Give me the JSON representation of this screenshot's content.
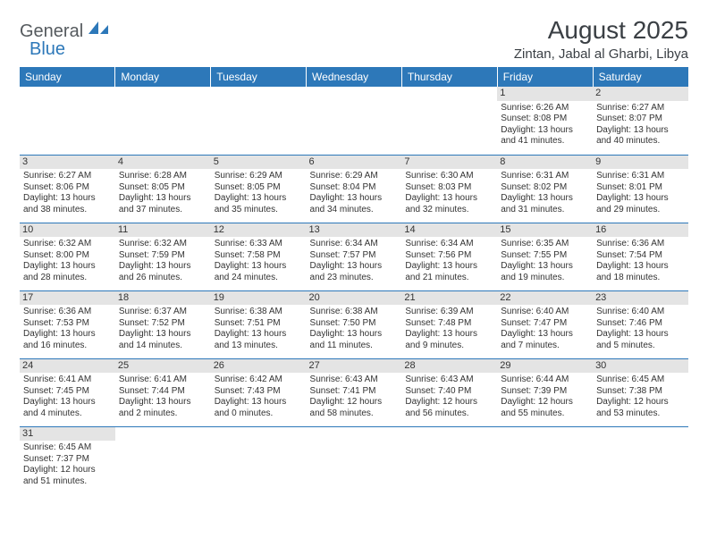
{
  "logo": {
    "part1": "General",
    "part2": "Blue"
  },
  "title": "August 2025",
  "location": "Zintan, Jabal al Gharbi, Libya",
  "colors": {
    "header_bg": "#2d78b9",
    "header_fg": "#ffffff",
    "daynum_bg": "#e4e4e4",
    "row_border": "#2d78b9",
    "logo_gray": "#555a5e",
    "logo_blue": "#2d78b9"
  },
  "weekdays": [
    "Sunday",
    "Monday",
    "Tuesday",
    "Wednesday",
    "Thursday",
    "Friday",
    "Saturday"
  ],
  "grid": [
    [
      null,
      null,
      null,
      null,
      null,
      {
        "n": "1",
        "sr": "6:26 AM",
        "ss": "8:08 PM",
        "dl": "13 hours and 41 minutes."
      },
      {
        "n": "2",
        "sr": "6:27 AM",
        "ss": "8:07 PM",
        "dl": "13 hours and 40 minutes."
      }
    ],
    [
      {
        "n": "3",
        "sr": "6:27 AM",
        "ss": "8:06 PM",
        "dl": "13 hours and 38 minutes."
      },
      {
        "n": "4",
        "sr": "6:28 AM",
        "ss": "8:05 PM",
        "dl": "13 hours and 37 minutes."
      },
      {
        "n": "5",
        "sr": "6:29 AM",
        "ss": "8:05 PM",
        "dl": "13 hours and 35 minutes."
      },
      {
        "n": "6",
        "sr": "6:29 AM",
        "ss": "8:04 PM",
        "dl": "13 hours and 34 minutes."
      },
      {
        "n": "7",
        "sr": "6:30 AM",
        "ss": "8:03 PM",
        "dl": "13 hours and 32 minutes."
      },
      {
        "n": "8",
        "sr": "6:31 AM",
        "ss": "8:02 PM",
        "dl": "13 hours and 31 minutes."
      },
      {
        "n": "9",
        "sr": "6:31 AM",
        "ss": "8:01 PM",
        "dl": "13 hours and 29 minutes."
      }
    ],
    [
      {
        "n": "10",
        "sr": "6:32 AM",
        "ss": "8:00 PM",
        "dl": "13 hours and 28 minutes."
      },
      {
        "n": "11",
        "sr": "6:32 AM",
        "ss": "7:59 PM",
        "dl": "13 hours and 26 minutes."
      },
      {
        "n": "12",
        "sr": "6:33 AM",
        "ss": "7:58 PM",
        "dl": "13 hours and 24 minutes."
      },
      {
        "n": "13",
        "sr": "6:34 AM",
        "ss": "7:57 PM",
        "dl": "13 hours and 23 minutes."
      },
      {
        "n": "14",
        "sr": "6:34 AM",
        "ss": "7:56 PM",
        "dl": "13 hours and 21 minutes."
      },
      {
        "n": "15",
        "sr": "6:35 AM",
        "ss": "7:55 PM",
        "dl": "13 hours and 19 minutes."
      },
      {
        "n": "16",
        "sr": "6:36 AM",
        "ss": "7:54 PM",
        "dl": "13 hours and 18 minutes."
      }
    ],
    [
      {
        "n": "17",
        "sr": "6:36 AM",
        "ss": "7:53 PM",
        "dl": "13 hours and 16 minutes."
      },
      {
        "n": "18",
        "sr": "6:37 AM",
        "ss": "7:52 PM",
        "dl": "13 hours and 14 minutes."
      },
      {
        "n": "19",
        "sr": "6:38 AM",
        "ss": "7:51 PM",
        "dl": "13 hours and 13 minutes."
      },
      {
        "n": "20",
        "sr": "6:38 AM",
        "ss": "7:50 PM",
        "dl": "13 hours and 11 minutes."
      },
      {
        "n": "21",
        "sr": "6:39 AM",
        "ss": "7:48 PM",
        "dl": "13 hours and 9 minutes."
      },
      {
        "n": "22",
        "sr": "6:40 AM",
        "ss": "7:47 PM",
        "dl": "13 hours and 7 minutes."
      },
      {
        "n": "23",
        "sr": "6:40 AM",
        "ss": "7:46 PM",
        "dl": "13 hours and 5 minutes."
      }
    ],
    [
      {
        "n": "24",
        "sr": "6:41 AM",
        "ss": "7:45 PM",
        "dl": "13 hours and 4 minutes."
      },
      {
        "n": "25",
        "sr": "6:41 AM",
        "ss": "7:44 PM",
        "dl": "13 hours and 2 minutes."
      },
      {
        "n": "26",
        "sr": "6:42 AM",
        "ss": "7:43 PM",
        "dl": "13 hours and 0 minutes."
      },
      {
        "n": "27",
        "sr": "6:43 AM",
        "ss": "7:41 PM",
        "dl": "12 hours and 58 minutes."
      },
      {
        "n": "28",
        "sr": "6:43 AM",
        "ss": "7:40 PM",
        "dl": "12 hours and 56 minutes."
      },
      {
        "n": "29",
        "sr": "6:44 AM",
        "ss": "7:39 PM",
        "dl": "12 hours and 55 minutes."
      },
      {
        "n": "30",
        "sr": "6:45 AM",
        "ss": "7:38 PM",
        "dl": "12 hours and 53 minutes."
      }
    ],
    [
      {
        "n": "31",
        "sr": "6:45 AM",
        "ss": "7:37 PM",
        "dl": "12 hours and 51 minutes."
      },
      null,
      null,
      null,
      null,
      null,
      null
    ]
  ],
  "labels": {
    "sunrise": "Sunrise:",
    "sunset": "Sunset:",
    "daylight": "Daylight:"
  }
}
